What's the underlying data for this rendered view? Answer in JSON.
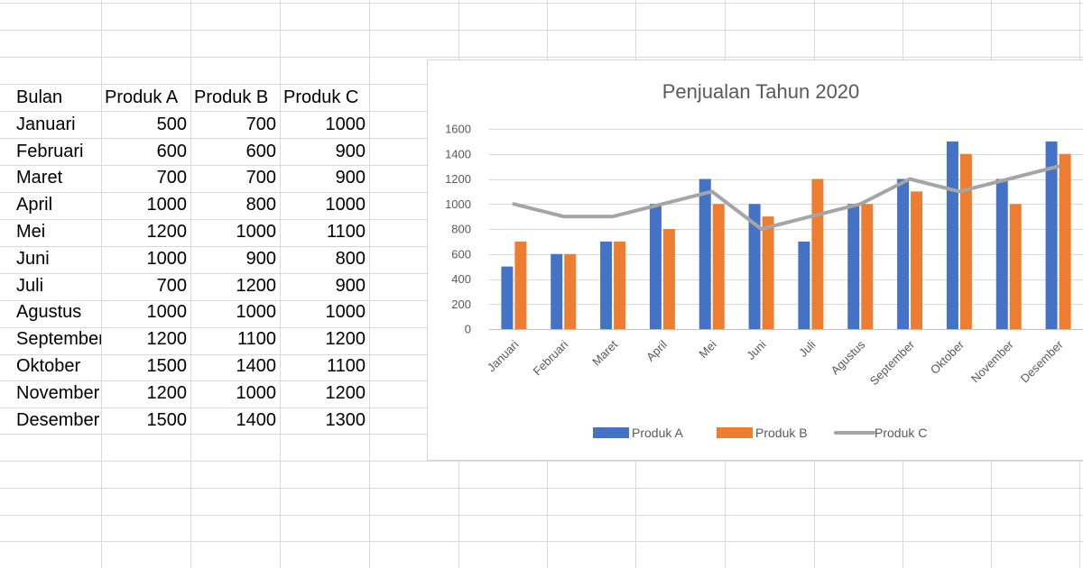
{
  "sheet": {
    "headers": [
      "Bulan",
      "Produk A",
      "Produk B",
      "Produk C"
    ],
    "rows": [
      [
        "Januari",
        "500",
        "700",
        "1000"
      ],
      [
        "Februari",
        "600",
        "600",
        "900"
      ],
      [
        "Maret",
        "700",
        "700",
        "900"
      ],
      [
        "April",
        "1000",
        "800",
        "1000"
      ],
      [
        "Mei",
        "1200",
        "1000",
        "1100"
      ],
      [
        "Juni",
        "1000",
        "900",
        "800"
      ],
      [
        "Juli",
        "700",
        "1200",
        "900"
      ],
      [
        "Agustus",
        "1000",
        "1000",
        "1000"
      ],
      [
        "September",
        "1200",
        "1100",
        "1200"
      ],
      [
        "Oktober",
        "1500",
        "1400",
        "1100"
      ],
      [
        "November",
        "1200",
        "1000",
        "1200"
      ],
      [
        "Desember",
        "1500",
        "1400",
        "1300"
      ]
    ]
  },
  "chart_data": {
    "type": "bar",
    "title": "Penjualan Tahun 2020",
    "categories": [
      "Januari",
      "Februari",
      "Maret",
      "April",
      "Mei",
      "Juni",
      "Juli",
      "Agustus",
      "September",
      "Oktober",
      "November",
      "Desember"
    ],
    "series": [
      {
        "name": "Produk A",
        "type": "bar",
        "color": "#4472c4",
        "values": [
          500,
          600,
          700,
          1000,
          1200,
          1000,
          700,
          1000,
          1200,
          1500,
          1200,
          1500
        ]
      },
      {
        "name": "Produk B",
        "type": "bar",
        "color": "#ed7d31",
        "values": [
          700,
          600,
          700,
          800,
          1000,
          900,
          1200,
          1000,
          1100,
          1400,
          1000,
          1400
        ]
      },
      {
        "name": "Produk C",
        "type": "line",
        "color": "#a5a5a5",
        "values": [
          1000,
          900,
          900,
          1000,
          1100,
          800,
          900,
          1000,
          1200,
          1100,
          1200,
          1300
        ]
      }
    ],
    "yticks": [
      "0",
      "200",
      "400",
      "600",
      "800",
      "1000",
      "1200",
      "1400",
      "1600"
    ],
    "ylim": [
      0,
      1600
    ],
    "grid": true,
    "legend": "bottom"
  }
}
